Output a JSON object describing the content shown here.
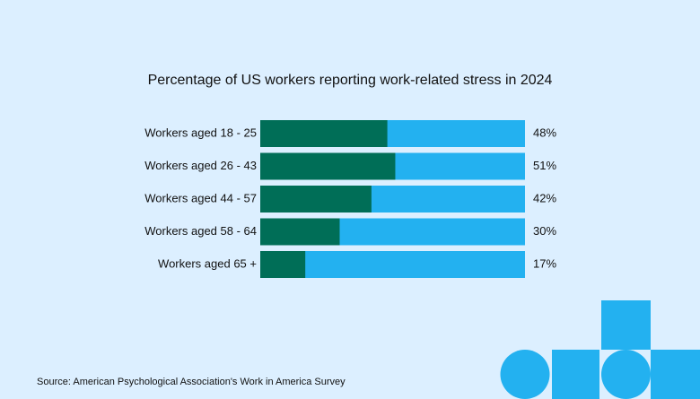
{
  "chart_data": {
    "type": "bar",
    "orientation": "horizontal",
    "title": "Percentage of US workers reporting work-related stress in 2024",
    "categories": [
      "Workers aged 18 - 25",
      "Workers aged 26 - 43",
      "Workers aged 44 - 57",
      "Workers aged 58 - 64",
      "Workers aged 65 +"
    ],
    "values": [
      48,
      51,
      42,
      30,
      17
    ],
    "value_labels": [
      "48%",
      "51%",
      "42%",
      "30%",
      "17%"
    ],
    "color": "#006e57",
    "track_color": "#23b1f0",
    "xlim": [
      0,
      100
    ],
    "source": "Source: American Psychological Association's Work in America Survey"
  }
}
